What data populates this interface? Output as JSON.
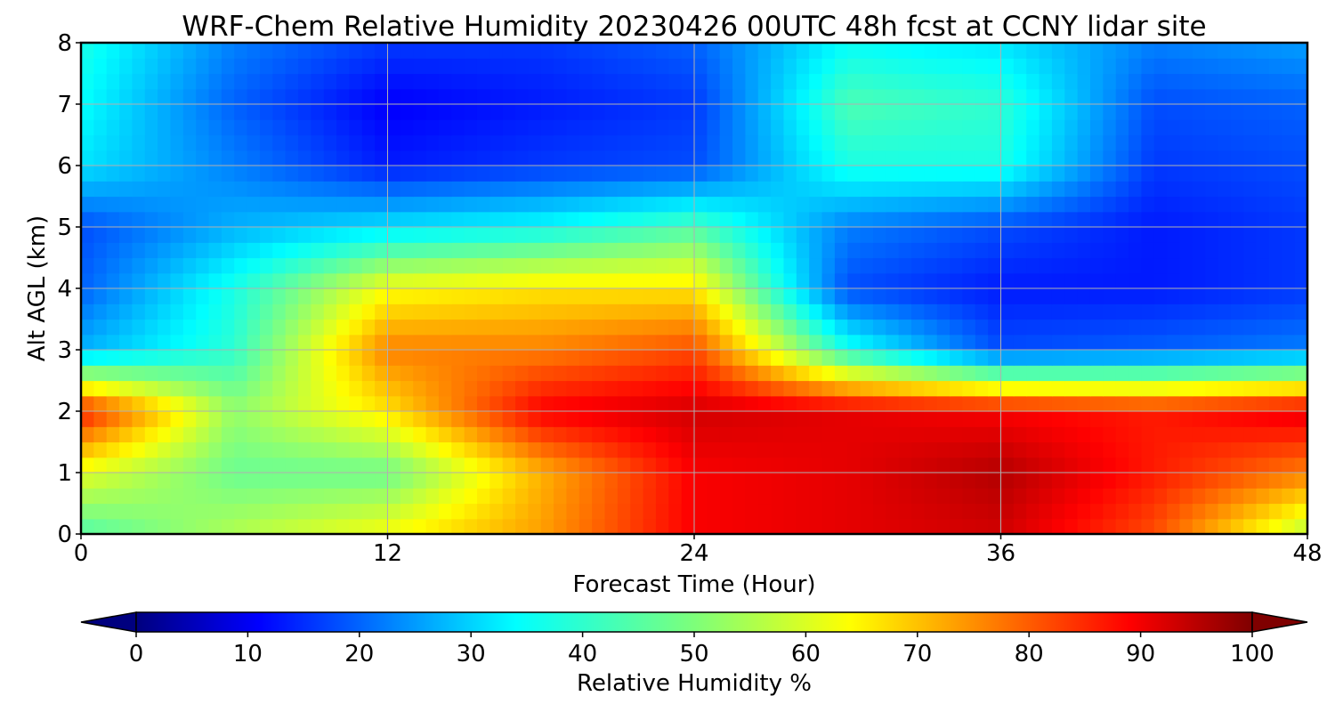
{
  "chart_data": {
    "type": "heatmap",
    "title": "WRF-Chem Relative Humidity 20230426 00UTC 48h fcst at CCNY lidar site",
    "xlabel": "Forecast Time (Hour)",
    "ylabel": "Alt AGL (km)",
    "xlim": [
      0,
      48
    ],
    "ylim": [
      0,
      8
    ],
    "x_ticks": [
      "0",
      "12",
      "24",
      "36",
      "48"
    ],
    "y_ticks": [
      "0",
      "1",
      "2",
      "3",
      "4",
      "5",
      "6",
      "7",
      "8"
    ],
    "grid": true,
    "colorbar": {
      "label": "Relative Humidity %",
      "colormap": "jet",
      "range": [
        0,
        100
      ],
      "ticks": [
        "0",
        "10",
        "20",
        "30",
        "40",
        "50",
        "60",
        "70",
        "80",
        "90",
        "100"
      ],
      "extend": "both",
      "orientation": "horizontal"
    },
    "x": [
      0,
      6,
      12,
      18,
      24,
      30,
      36,
      42,
      48
    ],
    "y": [
      0,
      1,
      2,
      3,
      4,
      5,
      6,
      7,
      8
    ],
    "z": [
      [
        45,
        55,
        62,
        72,
        88,
        90,
        92,
        80,
        55
      ],
      [
        60,
        48,
        48,
        70,
        88,
        90,
        95,
        85,
        75
      ],
      [
        85,
        52,
        65,
        88,
        92,
        90,
        88,
        85,
        90
      ],
      [
        30,
        42,
        75,
        75,
        80,
        40,
        20,
        22,
        25
      ],
      [
        22,
        40,
        62,
        65,
        65,
        20,
        15,
        15,
        18
      ],
      [
        20,
        30,
        35,
        38,
        45,
        25,
        20,
        15,
        18
      ],
      [
        35,
        25,
        15,
        18,
        20,
        40,
        40,
        18,
        20
      ],
      [
        38,
        22,
        12,
        15,
        18,
        45,
        42,
        20,
        22
      ],
      [
        40,
        25,
        18,
        18,
        22,
        38,
        35,
        25,
        28
      ]
    ]
  }
}
